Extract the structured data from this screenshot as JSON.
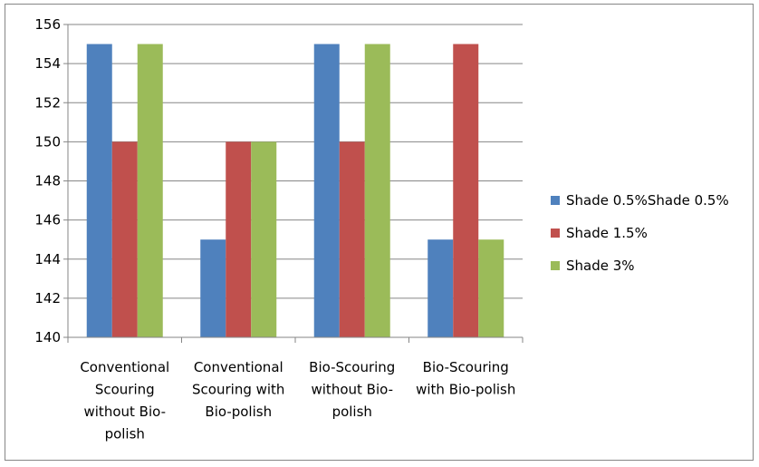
{
  "chart_data": {
    "type": "bar",
    "categories": [
      [
        "Conventional",
        "Scouring",
        "without Bio-",
        "polish"
      ],
      [
        "Conventional",
        "Scouring with",
        "Bio-polish"
      ],
      [
        "Bio-Scouring",
        "without Bio-",
        "polish"
      ],
      [
        "Bio-Scouring",
        "with Bio-polish"
      ]
    ],
    "series": [
      {
        "name": "Shade 0.5%Shade 0.5%",
        "color": "#4F81BD",
        "values": [
          155,
          145,
          155,
          145
        ]
      },
      {
        "name": "Shade 1.5%",
        "color": "#C0504D",
        "values": [
          150,
          150,
          150,
          155
        ]
      },
      {
        "name": "Shade 3%",
        "color": "#9BBB59",
        "values": [
          155,
          150,
          155,
          145
        ]
      }
    ],
    "ylim": [
      140,
      156
    ],
    "yticks": [
      "140",
      "142",
      "144",
      "146",
      "148",
      "150",
      "152",
      "154",
      "156"
    ],
    "grid": true,
    "legend_position": "right",
    "title": "",
    "xlabel": "",
    "ylabel": ""
  }
}
